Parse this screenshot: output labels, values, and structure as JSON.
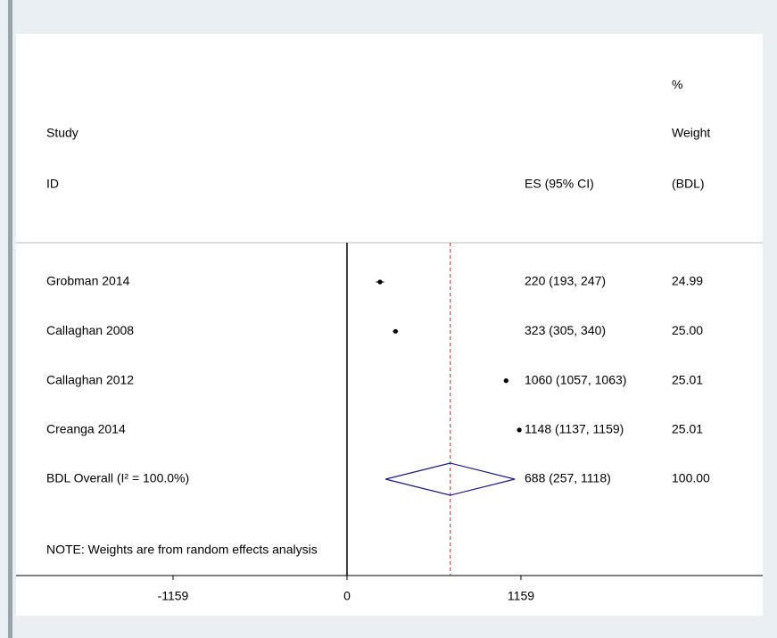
{
  "chart_data": {
    "type": "forest",
    "headers": {
      "study": [
        "Study",
        "ID"
      ],
      "es": "ES (95% CI)",
      "weight": [
        "%",
        "Weight",
        "(BDL)"
      ]
    },
    "categories": [
      "Grobman 2014",
      "Callaghan 2008",
      "Callaghan 2012",
      "Creanga 2014"
    ],
    "values": [
      220,
      323,
      1060,
      1148
    ],
    "lower": [
      193,
      305,
      1057,
      1137
    ],
    "upper": [
      247,
      340,
      1063,
      1159
    ],
    "value_labels": [
      "220 (193, 247)",
      "323 (305, 340)",
      "1060 (1057, 1063)",
      "1148 (1137, 1159)"
    ],
    "weights": [
      24.99,
      25.0,
      25.01,
      25.01
    ],
    "weight_labels": [
      "24.99",
      "25.00",
      "25.01",
      "25.01"
    ],
    "overall": {
      "label": "BDL Overall  (I² = 100.0%)",
      "value": 688,
      "lower": 257,
      "upper": 1118,
      "value_label": "688 (257, 1118)",
      "weight": 100,
      "weight_label": "100.00"
    },
    "note": "NOTE: Weights are from random effects analysis",
    "xlim": [
      -2205,
      2770
    ],
    "xticks": [
      -1159,
      0,
      1159
    ],
    "color": "#000000",
    "diamond_color": "#1a1a7a",
    "reference_color": "#b03030"
  }
}
